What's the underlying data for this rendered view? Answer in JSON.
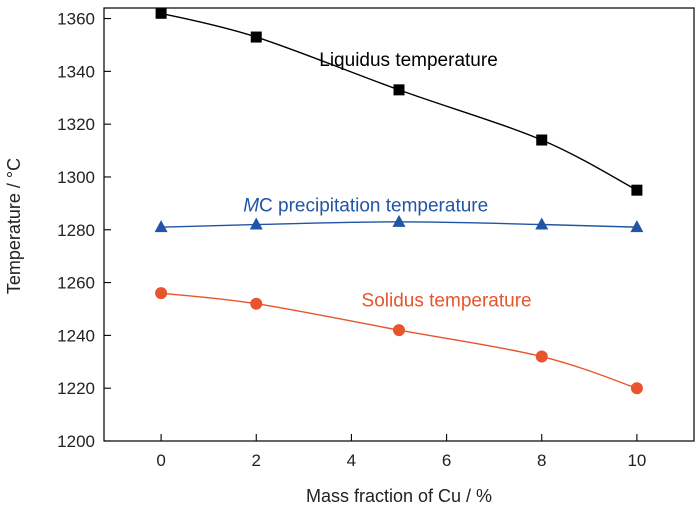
{
  "chart_data": {
    "type": "line",
    "title": "",
    "xlabel": "Mass fraction of Cu / %",
    "ylabel": "Temperature / °C",
    "xlim": [
      -1.2,
      11.2
    ],
    "ylim": [
      1200,
      1364
    ],
    "x_ticks": [
      0,
      2,
      4,
      6,
      8,
      10
    ],
    "y_ticks": [
      1200,
      1220,
      1240,
      1260,
      1280,
      1300,
      1320,
      1340,
      1360
    ],
    "grid": false,
    "x": [
      0,
      2,
      5,
      8,
      10
    ],
    "series": [
      {
        "name": "Liquidus temperature",
        "name_parts": [
          "Liquidus temperature"
        ],
        "values": [
          1362,
          1353,
          1333,
          1314,
          1295
        ],
        "color": "#000000",
        "marker": "square"
      },
      {
        "name": "MC precipitation temperature",
        "name_parts": [
          "M",
          "C precipitation temperature"
        ],
        "values": [
          1281,
          1282,
          1283,
          1282,
          1281
        ],
        "color": "#2155a6",
        "marker": "triangle"
      },
      {
        "name": "Solidus temperature",
        "name_parts": [
          "Solidus temperature"
        ],
        "values": [
          1256,
          1252,
          1242,
          1232,
          1220
        ],
        "color": "#e8552c",
        "marker": "circle"
      }
    ]
  }
}
